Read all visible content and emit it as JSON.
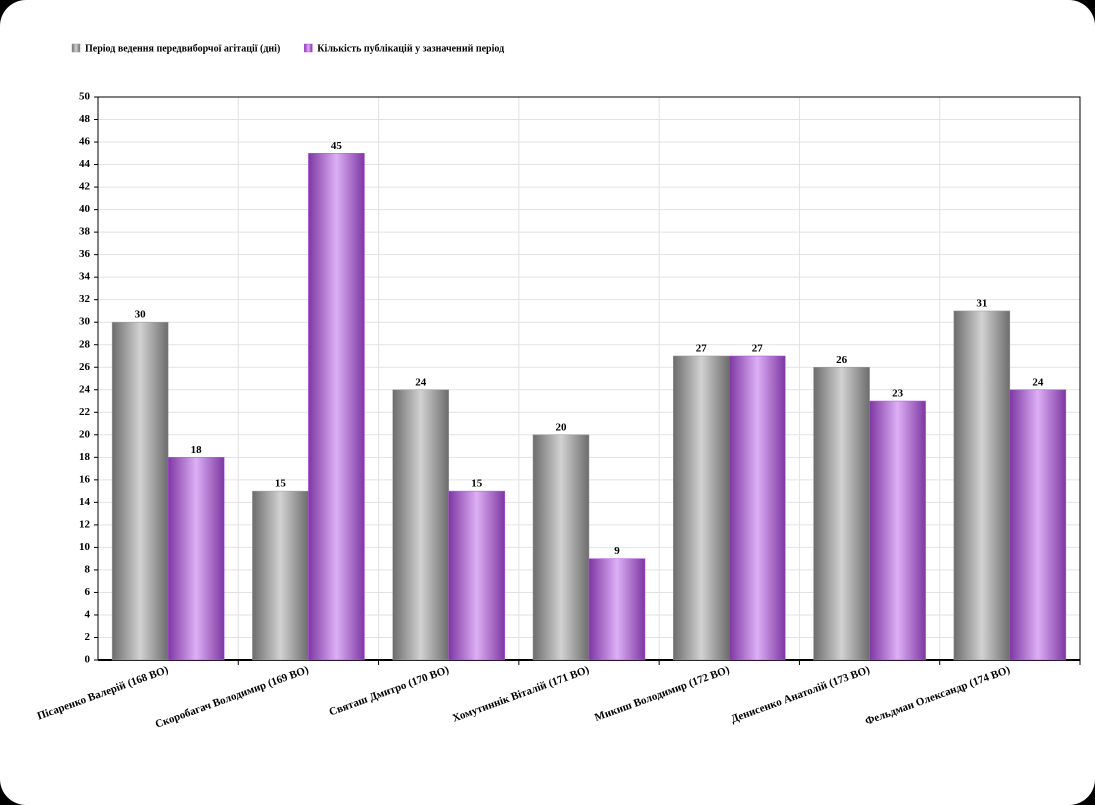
{
  "chart_data": {
    "type": "bar",
    "categories": [
      "Пісаренко Валерій (168 ВО)",
      "Скоробагач Володимир (169 ВО)",
      "Святаш Дмитро (170 ВО)",
      "Хомутиннік Віталій (171 ВО)",
      "Микиш Володимир (172 ВО)",
      "Денисенко Анатолій (173 ВО)",
      "Фельдман Олександр (174 ВО)"
    ],
    "series": [
      {
        "name": "Період ведення передвиборчої агітації (дні)",
        "color": "#9a9a9a",
        "values": [
          30,
          15,
          24,
          20,
          27,
          26,
          31
        ]
      },
      {
        "name": "Кількість публікацій у зазначений період",
        "color": "#b34ee8",
        "values": [
          18,
          45,
          15,
          9,
          27,
          23,
          24
        ]
      }
    ],
    "ylim": [
      0,
      50
    ],
    "yticks": [
      0,
      2,
      4,
      6,
      8,
      10,
      12,
      14,
      16,
      18,
      20,
      22,
      24,
      26,
      28,
      30,
      32,
      34,
      36,
      38,
      40,
      42,
      44,
      46,
      48,
      50
    ],
    "grid": true
  }
}
